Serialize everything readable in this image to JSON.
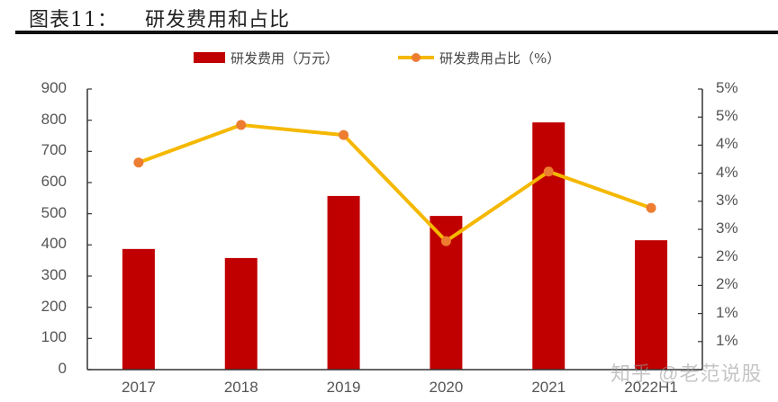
{
  "title": {
    "figure_num": "图表11：",
    "text": "研发费用和占比"
  },
  "legend": {
    "bar_label": "研发费用（万元）",
    "line_label": "研发费用占比（%）"
  },
  "colors": {
    "bar": "#C00000",
    "line": "#F5B800",
    "marker": "#ED7D31",
    "axis": "#333333"
  },
  "watermark": "知乎 @老范说股",
  "chart_data": {
    "type": "bar+line",
    "title": "研发费用和占比",
    "categories": [
      "2017",
      "2018",
      "2019",
      "2020",
      "2021",
      "2022H1"
    ],
    "series": [
      {
        "name": "研发费用（万元）",
        "type": "bar",
        "axis": "left",
        "values": [
          387,
          358,
          557,
          493,
          793,
          415
        ]
      },
      {
        "name": "研发费用占比（%）",
        "type": "line",
        "axis": "right",
        "values": [
          3.69,
          4.36,
          4.18,
          2.29,
          3.53,
          2.88
        ]
      }
    ],
    "y_left": {
      "ylim": [
        0,
        900
      ],
      "ticks": [
        "0",
        "100",
        "200",
        "300",
        "400",
        "500",
        "600",
        "700",
        "800",
        "900"
      ]
    },
    "y_right": {
      "ylim": [
        0,
        5
      ],
      "ticks": [
        "1%",
        "1%",
        "2%",
        "2%",
        "3%",
        "3%",
        "4%",
        "4%",
        "5%",
        "5%"
      ]
    },
    "xlabel": "",
    "ylabel": "",
    "grid": false,
    "legend_position": "top"
  }
}
